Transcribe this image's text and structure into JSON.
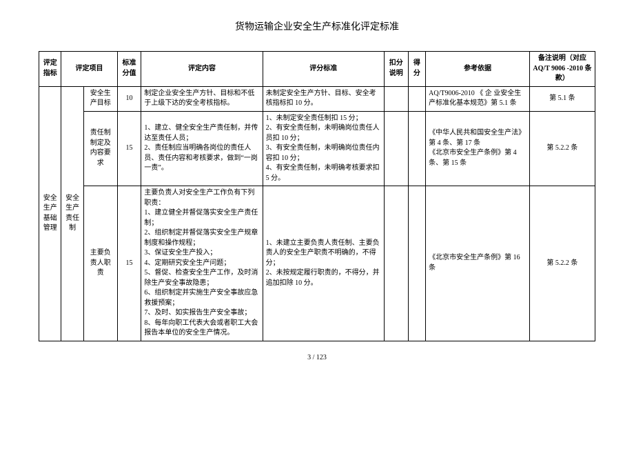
{
  "doc_title": "货物运输企业安全生产标准化评定标准",
  "footer": "3 / 123",
  "headers": {
    "c1": "评定指标",
    "c2": "评定项目",
    "c3": "标准分值",
    "c4": "评定内容",
    "c5": "评分标准",
    "c6": "扣分说明",
    "c7": "得分",
    "c8": "参考依据",
    "c9": "备注说明（对应 AQ/T 9006 -2010 条款）"
  },
  "group_col1": "安全生产基础管理",
  "group_col2a": "安全生产责任制",
  "rows": [
    {
      "item": "安全生产目标",
      "score": "10",
      "content": "制定企业安全生产方针、目标和不低于上级下达的安全考核指标。",
      "criteria": "未制定安全生产方针、目标、安全考核指标扣 10 分。",
      "deduct": "",
      "got": "",
      "ref": "AQ/T9006-2010 《 企 业安全生产标准化基本规范》第 5.1 条",
      "note": "第 5.1 条"
    },
    {
      "item": "责任制制定及内容要求",
      "score": "15",
      "content": "1、建立、健全安全生产责任制，并传达至责任人员；\n2、责任制应当明确各岗位的责任人员、责任内容和考核要求，做到“一岗一责”。",
      "criteria": "1、未制定安全责任制扣 15 分；\n2、有安全责任制，未明确岗位责任人员扣 10 分；\n3、有安全责任制，未明确岗位责任内容扣 10 分；\n4、有安全责任制，未明确考核要求扣 5 分。",
      "deduct": "",
      "got": "",
      "ref": "《中华人民共和国安全生产法》第 4 条、第 17 条\n《北京市安全生产条例》第 4 条、第 15 条",
      "note": "第 5.2.2 条"
    },
    {
      "item": "主要负责人职责",
      "score": "15",
      "content": "主要负责人对安全生产工作负有下列职责：\n1、建立健全并督促落实安全生产责任制；\n2、组织制定并督促落实安全生产规章制度和操作规程；\n3、保证安全生产投入；\n4、定期研究安全生产问题；\n5、督促、检查安全生产工作，及时消除生产安全事故隐患；\n6、组织制定并实施生产安全事故应急救援预案；\n7、及时、如实报告生产安全事故；\n8、每年向职工代表大会或者职工大会报告本单位的安全生产情况。",
      "criteria": "1、未建立主要负责人责任制、主要负责人的安全生产职责不明确的，不得分；\n2、未按规定履行职责的，不得分，并追加扣除 10 分。",
      "deduct": "",
      "got": "",
      "ref": "《北京市安全生产条例》第 16 条",
      "note": "第 5.2.2 条"
    }
  ]
}
